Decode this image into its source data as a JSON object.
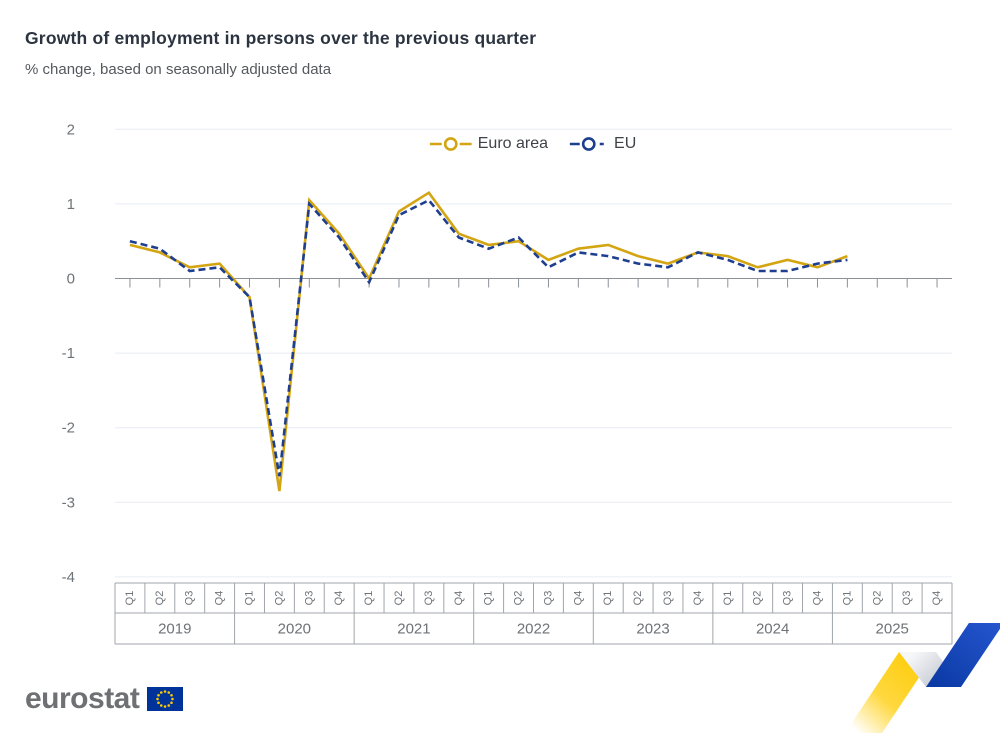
{
  "header": {
    "title": "Growth of employment in persons over the previous quarter",
    "subtitle": "% change, based on seasonally adjusted data"
  },
  "legend": {
    "items": [
      {
        "label": "Euro area"
      },
      {
        "label": "EU"
      }
    ]
  },
  "footer": {
    "logo_text": "eurostat"
  },
  "colors": {
    "euro_area": "#d4a513",
    "eu": "#1e3f8f",
    "grid": "#e8ecf2",
    "axis": "#8b9198",
    "table_border": "#a0a5ab",
    "label": "#6e7377",
    "title": "#2b3440",
    "subtitle": "#55595e",
    "flag_blue": "#003399",
    "flag_stars": "#ffcc00",
    "ribbon_yellow": "#ffcc00",
    "ribbon_blue": "#1c48c0"
  },
  "chart_data": {
    "type": "line",
    "title": "Growth of employment in persons over the previous quarter",
    "subtitle": "% change, based on seasonally adjusted data",
    "ylim": [
      -4,
      2
    ],
    "yticks": [
      2,
      1,
      0,
      -1,
      -2,
      -3,
      -4
    ],
    "grid": "horizontal gridlines only",
    "legend_position": "top-center",
    "years": [
      "2019",
      "2020",
      "2021",
      "2022",
      "2023",
      "2024",
      "2025"
    ],
    "quarters": [
      "Q1",
      "Q2",
      "Q3",
      "Q4"
    ],
    "last_data_point": "2025 Q1",
    "series": [
      {
        "name": "Euro area",
        "color": "#d4a513",
        "line_style": "solid",
        "values": [
          0.45,
          0.35,
          0.15,
          0.2,
          -0.25,
          -2.85,
          1.05,
          0.6,
          0.0,
          0.9,
          1.15,
          0.6,
          0.45,
          0.5,
          0.25,
          0.4,
          0.45,
          0.3,
          0.2,
          0.35,
          0.3,
          0.15,
          0.25,
          0.15,
          0.3,
          null,
          null,
          null
        ]
      },
      {
        "name": "EU",
        "color": "#1e3f8f",
        "line_style": "dashed",
        "values": [
          0.5,
          0.4,
          0.1,
          0.15,
          -0.25,
          -2.65,
          1.0,
          0.55,
          -0.05,
          0.85,
          1.05,
          0.55,
          0.4,
          0.55,
          0.15,
          0.35,
          0.3,
          0.2,
          0.15,
          0.35,
          0.25,
          0.1,
          0.1,
          0.2,
          0.25,
          null,
          null,
          null
        ]
      }
    ]
  }
}
